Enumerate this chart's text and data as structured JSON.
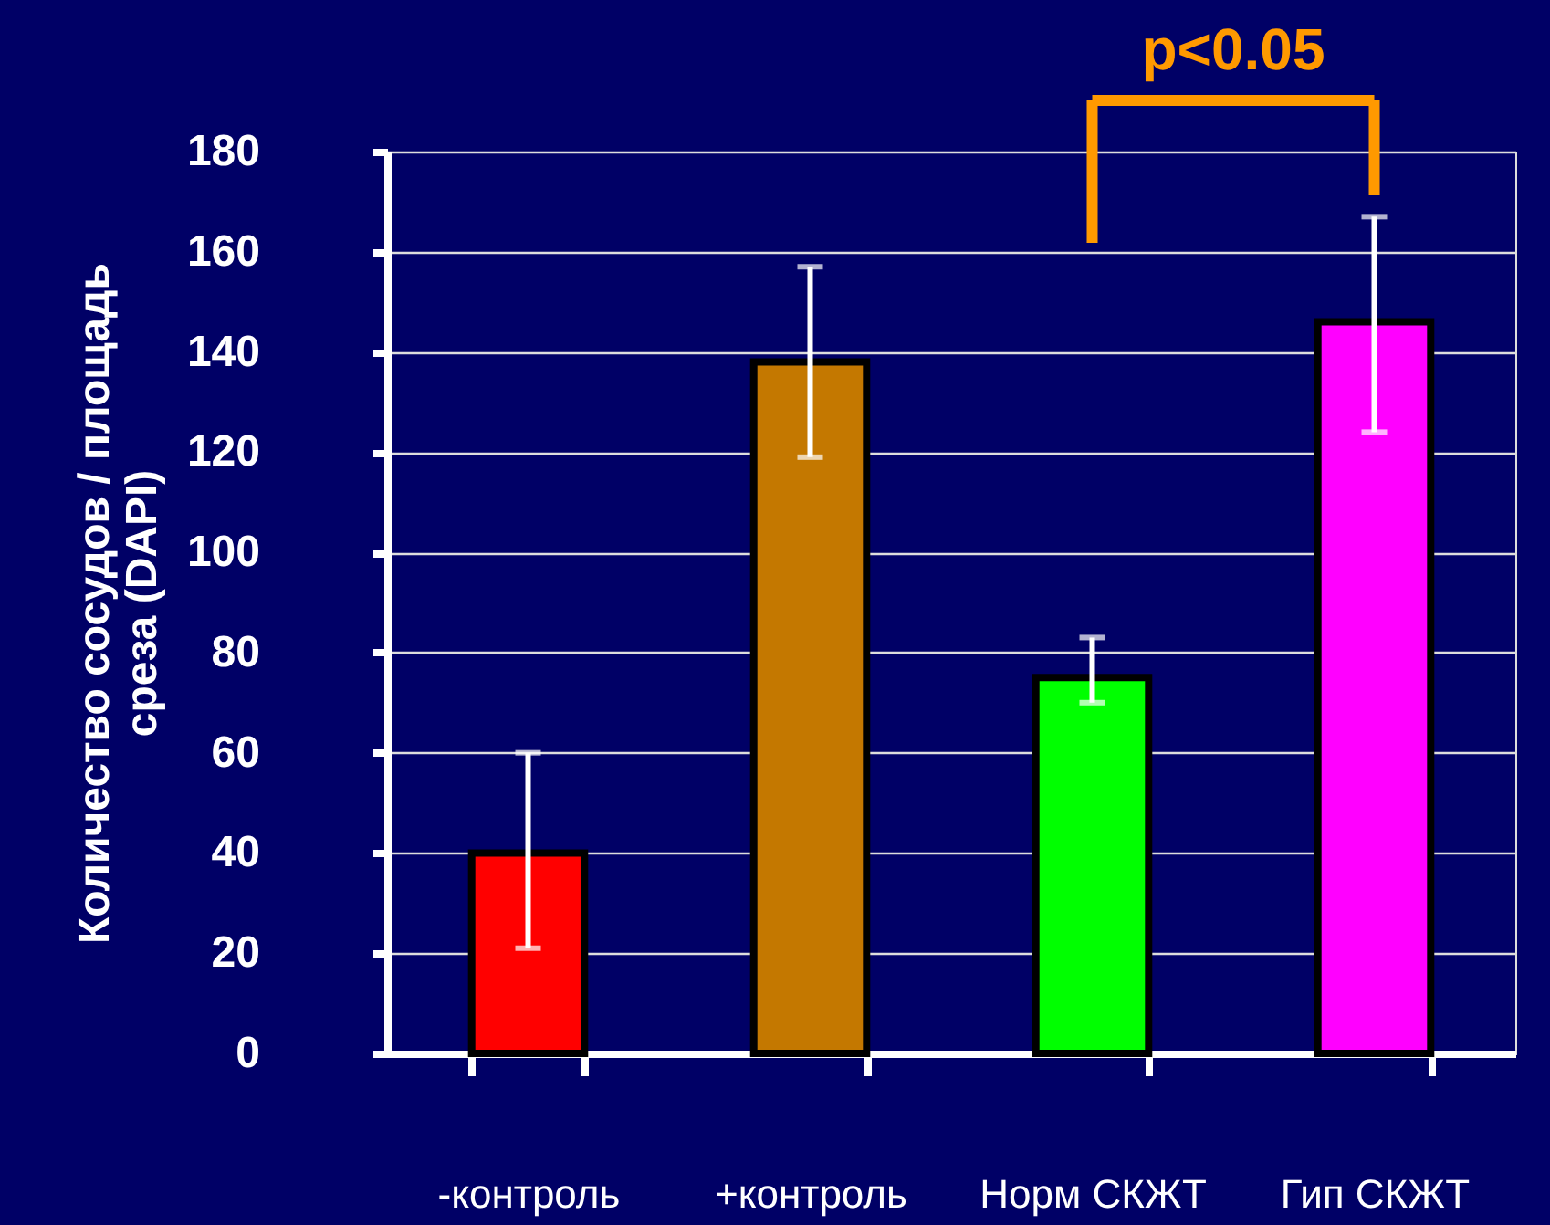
{
  "chart_data": {
    "type": "bar",
    "ylabel": "Количество сосудов / площадь\nсреза (DAPI)",
    "categories": [
      "-контроль",
      "+контроль",
      "Норм СКЖТ",
      "Гип СКЖТ"
    ],
    "values": [
      40,
      138,
      75,
      146
    ],
    "colors": [
      "#ff0000",
      "#c47800",
      "#00ff00",
      "#ff00ff"
    ],
    "errors": [
      [
        21,
        60
      ],
      [
        119,
        157
      ],
      [
        70,
        83
      ],
      [
        124,
        167
      ]
    ],
    "ylim": [
      0,
      180
    ],
    "yticks": [
      0,
      20,
      40,
      60,
      80,
      100,
      120,
      140,
      160,
      180
    ],
    "grid": "y",
    "legend": false,
    "annotations": [
      "p<0.05"
    ]
  }
}
